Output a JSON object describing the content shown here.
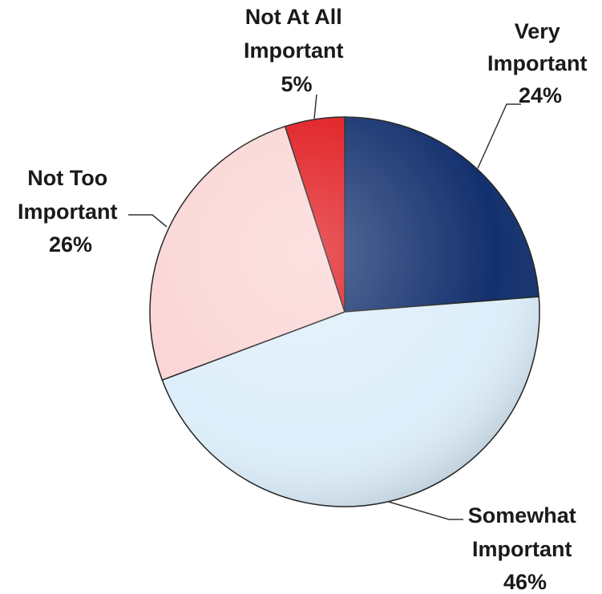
{
  "chart_data": {
    "type": "pie",
    "slices": [
      {
        "label_lines": [
          "Very",
          "Important"
        ],
        "pct_label": "24%",
        "value": 24,
        "color": "#13306e"
      },
      {
        "label_lines": [
          "Somewhat",
          "Important"
        ],
        "pct_label": "46%",
        "value": 46,
        "color": "#ddeefa"
      },
      {
        "label_lines": [
          "Not Too",
          "Important"
        ],
        "pct_label": "26%",
        "value": 26,
        "color": "#fbd5d5"
      },
      {
        "label_lines": [
          "Not At All",
          "Important"
        ],
        "pct_label": "5%",
        "value": 5,
        "color": "#e0161b"
      }
    ],
    "start_angle_deg": 0,
    "direction": "clockwise",
    "legend": "none",
    "data_labels": "outside with leader lines"
  }
}
